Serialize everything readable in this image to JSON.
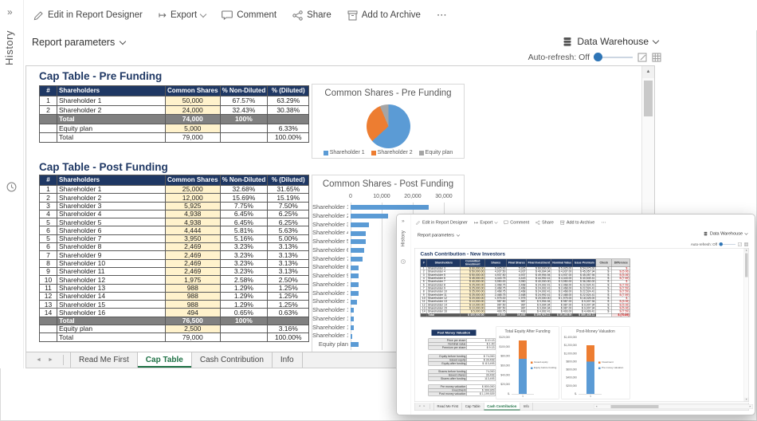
{
  "icons": {
    "collapse": "»",
    "export_arrow": "↦",
    "more": "⋯",
    "tab_prev": "◄",
    "tab_next": "►",
    "scroll_up": "▲",
    "scroll_down": "▼"
  },
  "sidebar": {
    "history_label": "History"
  },
  "toolbar": {
    "edit": "Edit in Report Designer",
    "export": "Export",
    "comment": "Comment",
    "share": "Share",
    "archive": "Add to Archive"
  },
  "params": {
    "label": "Report parameters"
  },
  "source": {
    "label": "Data Warehouse"
  },
  "autorefresh": {
    "label": "Auto-refresh: Off"
  },
  "sheet_tabs": {
    "items": [
      "Read Me First",
      "Cap Table",
      "Cash Contribution",
      "Info"
    ],
    "active_main": "Cap Table",
    "active_overlay": "Cash Contribution"
  },
  "pre_funding": {
    "title": "Cap Table - Pre Funding",
    "headers": [
      "#",
      "Shareholders",
      "Common Shares",
      "% Non-Diluted",
      "% (Diluted)"
    ],
    "rows": [
      {
        "type": "data",
        "cells": [
          "1",
          "Shareholder 1",
          "50,000",
          "67.57%",
          "63.29%"
        ]
      },
      {
        "type": "data",
        "cells": [
          "2",
          "Shareholder 2",
          "24,000",
          "32.43%",
          "30.38%"
        ]
      },
      {
        "type": "total",
        "cells": [
          "",
          "Total",
          "74,000",
          "100%",
          ""
        ]
      },
      {
        "type": "data",
        "cells": [
          "",
          "Equity plan",
          "5,000",
          "",
          "6.33%"
        ]
      },
      {
        "type": "plain",
        "cells": [
          "",
          "Total",
          "79,000",
          "",
          "100.00%"
        ]
      }
    ]
  },
  "post_funding": {
    "title": "Cap Table - Post Funding",
    "headers": [
      "#",
      "Shareholders",
      "Common Shares",
      "% Non-Diluted",
      "% (Diluted)"
    ],
    "rows": [
      {
        "type": "data",
        "cells": [
          "1",
          "Shareholder 1",
          "25,000",
          "32.68%",
          "31.65%"
        ]
      },
      {
        "type": "data",
        "cells": [
          "2",
          "Shareholder 2",
          "12,000",
          "15.69%",
          "15.19%"
        ]
      },
      {
        "type": "data",
        "cells": [
          "3",
          "Shareholder 3",
          "5,925",
          "7.75%",
          "7.50%"
        ]
      },
      {
        "type": "data",
        "cells": [
          "4",
          "Shareholder 4",
          "4,938",
          "6.45%",
          "6.25%"
        ]
      },
      {
        "type": "data",
        "cells": [
          "5",
          "Shareholder 5",
          "4,938",
          "6.45%",
          "6.25%"
        ]
      },
      {
        "type": "data",
        "cells": [
          "6",
          "Shareholder 6",
          "4,444",
          "5.81%",
          "5.63%"
        ]
      },
      {
        "type": "data",
        "cells": [
          "5",
          "Shareholder 7",
          "3,950",
          "5.16%",
          "5.00%"
        ]
      },
      {
        "type": "data",
        "cells": [
          "6",
          "Shareholder 8",
          "2,469",
          "3.23%",
          "3.13%"
        ]
      },
      {
        "type": "data",
        "cells": [
          "7",
          "Shareholder 9",
          "2,469",
          "3.23%",
          "3.13%"
        ]
      },
      {
        "type": "data",
        "cells": [
          "8",
          "Shareholder 10",
          "2,469",
          "3.23%",
          "3.13%"
        ]
      },
      {
        "type": "data",
        "cells": [
          "9",
          "Shareholder 11",
          "2,469",
          "3.23%",
          "3.13%"
        ]
      },
      {
        "type": "data",
        "cells": [
          "10",
          "Shareholder 12",
          "1,975",
          "2.58%",
          "2.50%"
        ]
      },
      {
        "type": "data",
        "cells": [
          "11",
          "Shareholder 13",
          "988",
          "1.29%",
          "1.25%"
        ]
      },
      {
        "type": "data",
        "cells": [
          "12",
          "Shareholder 14",
          "988",
          "1.29%",
          "1.25%"
        ]
      },
      {
        "type": "data",
        "cells": [
          "13",
          "Shareholder 15",
          "988",
          "1.29%",
          "1.25%"
        ]
      },
      {
        "type": "data",
        "cells": [
          "14",
          "Shareholder 16",
          "494",
          "0.65%",
          "0.63%"
        ]
      },
      {
        "type": "total",
        "cells": [
          "",
          "Total",
          "76,500",
          "100%",
          ""
        ]
      },
      {
        "type": "data",
        "cells": [
          "",
          "Equity plan",
          "2,500",
          "",
          "3.16%"
        ]
      },
      {
        "type": "plain",
        "cells": [
          "",
          "Total",
          "79,000",
          "",
          "100.00%"
        ]
      }
    ]
  },
  "cash_contribution": {
    "title": "Cash Contribution - New Investors",
    "headers": [
      "#",
      "Shareholders",
      "Committed Investment",
      "Shares",
      "Final Shares",
      "Final Investment",
      "Nominal Value",
      "Issue Premium",
      "Check",
      "Difference"
    ],
    "rows": [
      {
        "cells": [
          "1",
          "Shareholder 3",
          "$ 60,000.00",
          "5,925.00",
          "5,925",
          "$ 60,000.00",
          "$ 5,925.00",
          "$ 54,075.00",
          "$ -",
          "$ -"
        ]
      },
      {
        "cells": [
          "2",
          "Shareholder 4",
          "$ 50,000.00",
          "4,937.50",
          "4,937",
          "$ 49,994.94",
          "$ 4,937.00",
          "$ 45,057.94",
          "$ -",
          "$ (5.06)"
        ]
      },
      {
        "cells": [
          "3",
          "Shareholder 5",
          "$ 50,000.00",
          "4,937.50",
          "4,937",
          "$ 49,994.94",
          "$ 4,937.00",
          "$ 45,057.94",
          "$ -",
          "$ (5.06)"
        ]
      },
      {
        "cells": [
          "4",
          "Shareholder 6",
          "$ 45,000.00",
          "4,443.75",
          "4,443",
          "$ 44,992.41",
          "$ 4,443.00",
          "$ 40,549.41",
          "$ -",
          "$ (7.59)"
        ]
      },
      {
        "cells": [
          "5",
          "Shareholder 7",
          "$ 40,000.00",
          "3,950.00",
          "3,950",
          "$ 40,000.00",
          "$ 3,950.00",
          "$ 36,050.00",
          "$ -",
          "$ -"
        ]
      },
      {
        "cells": [
          "6",
          "Shareholder 8",
          "$ 25,000.00",
          "2,468.75",
          "2,468",
          "$ 24,992.41",
          "$ 2,468.00",
          "$ 22,524.41",
          "$ -",
          "$ (7.59)"
        ]
      },
      {
        "cells": [
          "7",
          "Shareholder 9",
          "$ 25,000.00",
          "2,468.75",
          "2,468",
          "$ 24,992.41",
          "$ 2,468.00",
          "$ 22,524.41",
          "$ -",
          "$ (7.59)"
        ]
      },
      {
        "cells": [
          "8",
          "Shareholder 10",
          "$ 25,000.00",
          "2,468.75",
          "2,468",
          "$ 24,992.41",
          "$ 2,468.00",
          "$ 22,524.41",
          "$ -",
          "$ (7.59)"
        ]
      },
      {
        "cells": [
          "9",
          "Shareholder 11",
          "$ 25,000.00",
          "2,468.75",
          "2,468",
          "$ 24,992.41",
          "$ 2,468.00",
          "$ 22,524.41",
          "$ -",
          "$ (7.59)"
        ]
      },
      {
        "cells": [
          "10",
          "Shareholder 12",
          "$ 20,000.00",
          "1,975.00",
          "1,975",
          "$ 20,000.00",
          "$ 1,975.00",
          "$ 18,025.00",
          "$ -",
          "$ -"
        ]
      },
      {
        "cells": [
          "11",
          "Shareholder 13",
          "$ 10,000.00",
          "987.50",
          "987",
          "$ 9,994.94",
          "$ 987.00",
          "$ 9,007.94",
          "$ -",
          "$ (5.06)"
        ]
      },
      {
        "cells": [
          "12",
          "Shareholder 14",
          "$ 10,000.00",
          "987.50",
          "987",
          "$ 9,994.94",
          "$ 987.00",
          "$ 9,007.94",
          "$ -",
          "$ (5.06)"
        ]
      },
      {
        "cells": [
          "13",
          "Shareholder 15",
          "$ 10,000.00",
          "987.50",
          "987",
          "$ 9,994.94",
          "$ 987.00",
          "$ 9,007.94",
          "$ -",
          "$ (5.06)"
        ]
      },
      {
        "cells": [
          "14",
          "Shareholder 16",
          "$ 5,000.00",
          "493.75",
          "493",
          "$ 4,992.41",
          "$ 493.00",
          "$ 4,499.41",
          "$ -",
          "$ (7.59)"
        ]
      }
    ],
    "total": {
      "cells": [
        "",
        "Total",
        "$ 400,000.00",
        "39,500",
        "39,493",
        "$ 399,929.11",
        "$ 39,493.00",
        "$ 360,436.11",
        "",
        "$ (70.89)"
      ]
    }
  },
  "valuation": {
    "header": "Post Money Valuation",
    "tables": [
      [
        [
          "Price per share",
          "$ 10.13"
        ],
        [
          "Nominal value",
          "$ 1.00"
        ],
        [
          "Premium per share",
          "$ 9.13"
        ]
      ],
      [
        [
          "Equity before funding",
          "$ 74,000"
        ],
        [
          "Issued equity",
          "$ 39,493"
        ],
        [
          "Equity after funding",
          "$ 113,493"
        ]
      ],
      [
        [
          "Shares before funding",
          "74,000"
        ],
        [
          "Issued shares",
          "39,493"
        ],
        [
          "Shares after funding",
          "113,493"
        ]
      ],
      [
        [
          "Pre money valuation",
          "$ 800,000",
          "yellow"
        ],
        [
          "Investment",
          "$ 399,929"
        ],
        [
          "Post money valuation",
          "$ 1,199,929"
        ]
      ]
    ]
  },
  "chart_data": [
    {
      "type": "pie",
      "title": "Common Shares - Pre Funding",
      "categories": [
        "Shareholder 1",
        "Shareholder 2",
        "Equity plan"
      ],
      "values": [
        50000,
        24000,
        5000
      ],
      "percents": [
        63.29,
        30.38,
        6.33
      ],
      "colors": [
        "#5B9BD5",
        "#ED7D31",
        "#A5A5A5"
      ],
      "legend_position": "bottom"
    },
    {
      "type": "bar",
      "orientation": "horizontal",
      "title": "Common Shares - Post Funding",
      "categories": [
        "Shareholder 1",
        "Shareholder 2",
        "Shareholder 3",
        "Shareholder 4",
        "Shareholder 5",
        "Shareholder 6",
        "Shareholder 7",
        "Shareholder 8",
        "Shareholder 9",
        "Shareholder 10",
        "Shareholder 11",
        "Shareholder 12",
        "Shareholder 13",
        "Shareholder 14",
        "Shareholder 15",
        "Shareholder 16",
        "Equity plan"
      ],
      "values": [
        25000,
        12000,
        5925,
        4938,
        4938,
        4444,
        3950,
        2469,
        2469,
        2469,
        2469,
        1975,
        988,
        988,
        988,
        494,
        2500
      ],
      "x_ticks": [
        "0",
        "10,000",
        "20,000",
        "30,000"
      ],
      "xlim": [
        0,
        30000
      ],
      "bar_color": "#5B9BD5",
      "grid": true
    },
    {
      "type": "bar",
      "subtype": "stacked-column",
      "title": "Total Equity After Funding",
      "x_categories": [
        "1"
      ],
      "series": [
        {
          "name": "Equity before funding",
          "value": 74000,
          "color": "#5B9BD5"
        },
        {
          "name": "Issued equity",
          "value": 39493,
          "color": "#ED7D31"
        }
      ],
      "ylim": [
        0,
        120000
      ],
      "y_ticks": [
        "$120,000",
        "$100,000",
        "$80,000",
        "$60,000",
        "$40,000",
        "$20,000",
        "$-"
      ],
      "legend_order": [
        "Issued equity",
        "Equity before funding"
      ],
      "legend_position": "right"
    },
    {
      "type": "bar",
      "subtype": "stacked-column",
      "title": "Post-Money Valuation",
      "x_categories": [
        "1"
      ],
      "series": [
        {
          "name": "Pre money valuation",
          "value": 800000,
          "color": "#5B9BD5"
        },
        {
          "name": "Investment",
          "value": 399929,
          "color": "#ED7D31"
        }
      ],
      "ylim": [
        0,
        1400000
      ],
      "y_ticks": [
        "$1,400,000",
        "$1,200,000",
        "$1,000,000",
        "$800,000",
        "$600,000",
        "$400,000",
        "$200,000",
        "$-"
      ],
      "legend_order": [
        "Investment",
        "Pre money valuation"
      ],
      "legend_position": "right"
    }
  ]
}
